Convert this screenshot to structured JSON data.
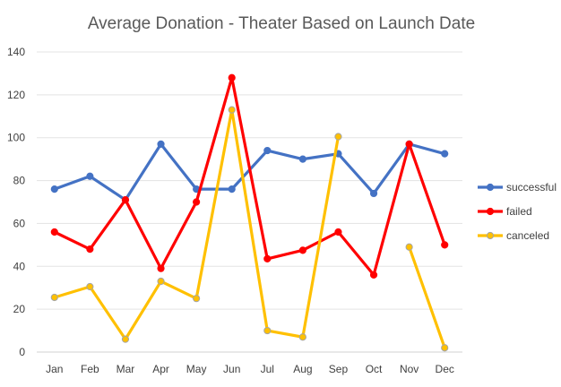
{
  "chart_data": {
    "type": "line",
    "title": "Average Donation - Theater Based on Launch Date",
    "xlabel": "",
    "ylabel": "",
    "categories": [
      "Jan",
      "Feb",
      "Mar",
      "Apr",
      "May",
      "Jun",
      "Jul",
      "Aug",
      "Sep",
      "Oct",
      "Nov",
      "Dec"
    ],
    "ylim": [
      0,
      140
    ],
    "yticks": [
      0,
      20,
      40,
      60,
      80,
      100,
      120,
      140
    ],
    "grid": true,
    "legend_position": "right",
    "series": [
      {
        "name": "successful",
        "color": "#4472C4",
        "values": [
          76,
          82,
          71,
          97,
          76,
          76,
          94,
          90,
          92.5,
          74,
          97,
          92.5
        ]
      },
      {
        "name": "failed",
        "color": "#FF0000",
        "values": [
          56,
          48,
          71,
          39,
          70,
          128,
          43.5,
          47.5,
          56,
          36,
          97,
          50
        ]
      },
      {
        "name": "canceled",
        "color": "#FFC000",
        "values": [
          25.5,
          30.5,
          6,
          33,
          25,
          113,
          10,
          7,
          100.5,
          null,
          49,
          2
        ]
      }
    ]
  }
}
